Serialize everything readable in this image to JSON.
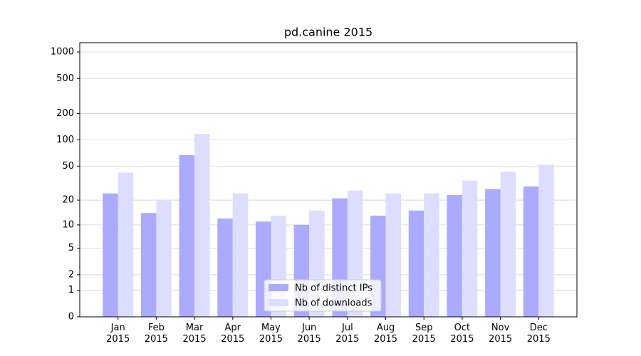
{
  "chart_data": {
    "type": "bar",
    "title": "pd.canine 2015",
    "categories": [
      "Jan 2015",
      "Feb 2015",
      "Mar 2015",
      "Apr 2015",
      "May 2015",
      "Jun 2015",
      "Jul 2015",
      "Aug 2015",
      "Sep 2015",
      "Oct 2015",
      "Nov 2015",
      "Dec 2015"
    ],
    "series": [
      {
        "name": "Nb of distinct IPs",
        "color": "#aaaaff",
        "values": [
          24,
          14,
          67,
          12,
          11,
          10,
          21,
          13,
          15,
          23,
          27,
          29
        ]
      },
      {
        "name": "Nb of downloads",
        "color": "#ddddff",
        "values": [
          42,
          20,
          117,
          24,
          13,
          15,
          26,
          24,
          24,
          34,
          43,
          52
        ]
      }
    ],
    "yscale": "log1p",
    "ylim": [
      0,
      1273
    ],
    "yticks": [
      0,
      1,
      2,
      5,
      10,
      20,
      50,
      100,
      200,
      500,
      1000
    ],
    "grid": true,
    "legend": "lower center"
  }
}
